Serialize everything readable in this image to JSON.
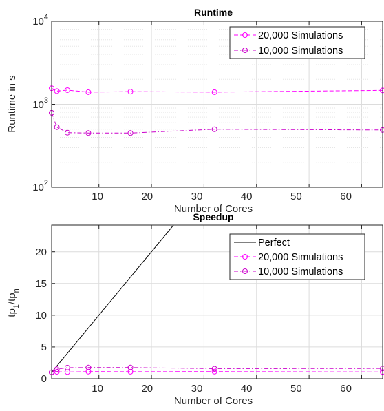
{
  "chart_data": [
    {
      "type": "line",
      "title": "Runtime",
      "xlabel": "Number of Cores",
      "ylabel": "Runtime in s",
      "yscale": "log",
      "xlim": [
        1,
        64
      ],
      "ylim": [
        100,
        10000
      ],
      "x_ticks": [
        "10",
        "20",
        "30",
        "40",
        "50",
        "60"
      ],
      "y_ticks": [
        {
          "base": "10",
          "exp": "2"
        },
        {
          "base": "10",
          "exp": "3"
        },
        {
          "base": "10",
          "exp": "4"
        }
      ],
      "grid": true,
      "legend_position": "top-right",
      "series": [
        {
          "name": "20,000 Simulations",
          "color": "#ff00ff",
          "dash": "dashed",
          "marker": "circle",
          "x": [
            1,
            2,
            4,
            8,
            16,
            32,
            64
          ],
          "y": [
            1560,
            1440,
            1480,
            1400,
            1420,
            1400,
            1470
          ]
        },
        {
          "name": "10,000 Simulations",
          "color": "#cc00cc",
          "dash": "dashdot",
          "marker": "circle",
          "x": [
            1,
            2,
            4,
            8,
            16,
            32,
            64
          ],
          "y": [
            790,
            530,
            455,
            450,
            450,
            500,
            490
          ]
        }
      ]
    },
    {
      "type": "line",
      "title": "Speedup",
      "xlabel": "Number of Cores",
      "ylabel": {
        "main": "tp",
        "sub1": "1",
        "mid": "/tp",
        "sub2": "n"
      },
      "xlim": [
        1,
        64
      ],
      "ylim": [
        0,
        24.2
      ],
      "x_ticks": [
        "10",
        "20",
        "30",
        "40",
        "50",
        "60"
      ],
      "y_ticks": [
        "0",
        "5",
        "10",
        "15",
        "20"
      ],
      "grid": true,
      "legend_position": "top-right",
      "series": [
        {
          "name": "Perfect",
          "color": "#000000",
          "dash": "solid",
          "marker": "none",
          "x": [
            1,
            24.2
          ],
          "y": [
            1,
            24.2
          ]
        },
        {
          "name": "20,000 Simulations",
          "color": "#ff00ff",
          "dash": "dashed",
          "marker": "circle",
          "x": [
            1,
            2,
            4,
            8,
            16,
            32,
            64
          ],
          "y": [
            1,
            1.08,
            1.05,
            1.11,
            1.1,
            1.11,
            1.06
          ]
        },
        {
          "name": "10,000 Simulations",
          "color": "#cc00cc",
          "dash": "dashdot",
          "marker": "circle",
          "x": [
            1,
            2,
            4,
            8,
            16,
            32,
            64
          ],
          "y": [
            1,
            1.49,
            1.74,
            1.76,
            1.76,
            1.58,
            1.61
          ]
        }
      ]
    }
  ]
}
